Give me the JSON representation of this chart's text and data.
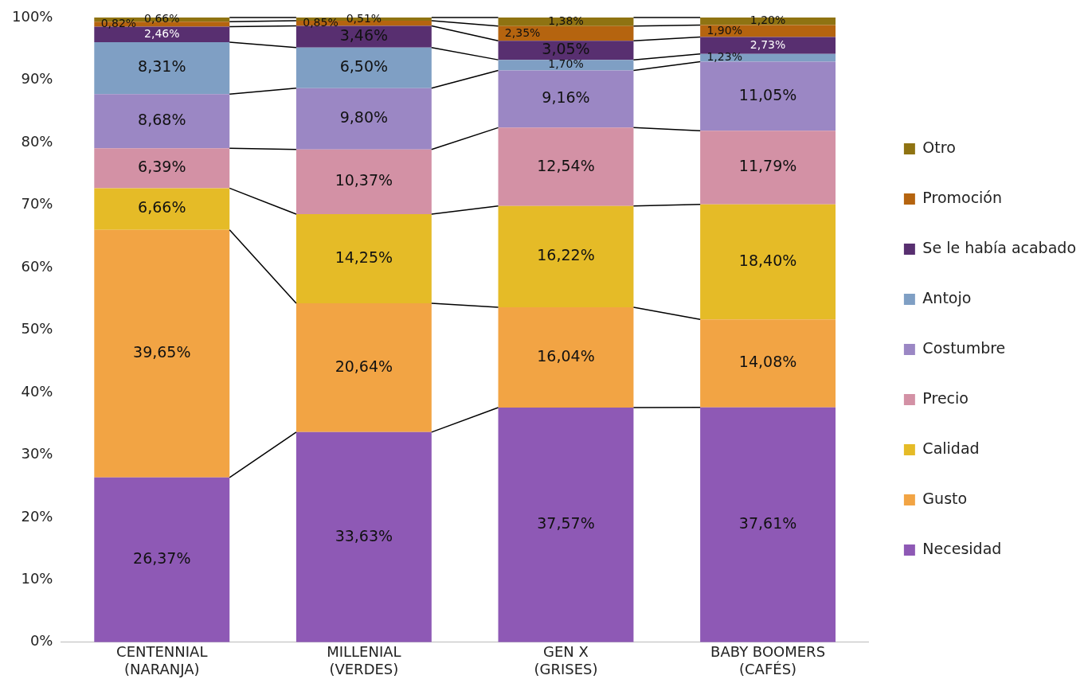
{
  "chart_data": {
    "type": "bar",
    "stacked": true,
    "categories": [
      "CENTENNIAL (NARANJA)",
      "MILLENIAL (VERDES)",
      "GEN X (GRISES)",
      "BABY BOOMERS (CAFÉS)"
    ],
    "ylim": [
      0,
      100
    ],
    "yticks": [
      {
        "value": 0,
        "label": "0%"
      },
      {
        "value": 10,
        "label": "10%"
      },
      {
        "value": 20,
        "label": "20%"
      },
      {
        "value": 30,
        "label": "30%"
      },
      {
        "value": 40,
        "label": "40%"
      },
      {
        "value": 50,
        "label": "50%"
      },
      {
        "value": 60,
        "label": "60%"
      },
      {
        "value": 70,
        "label": "70%"
      },
      {
        "value": 80,
        "label": "80%"
      },
      {
        "value": 90,
        "label": "90%"
      },
      {
        "value": 100,
        "label": "100%"
      }
    ],
    "grid": false,
    "legend": "right",
    "series": [
      {
        "name": "Necesidad",
        "color": "#8e59b5",
        "values": [
          26.37,
          33.63,
          37.57,
          37.61
        ],
        "value_labels": [
          "26,37%",
          "33,63%",
          "37,57%",
          "37,61%"
        ]
      },
      {
        "name": "Gusto",
        "color": "#f2a444",
        "values": [
          39.65,
          20.64,
          16.04,
          14.08
        ],
        "value_labels": [
          "39,65%",
          "20,64%",
          "16,04%",
          "14,08%"
        ]
      },
      {
        "name": "Calidad",
        "color": "#e5bb27",
        "values": [
          6.66,
          14.25,
          16.22,
          18.4
        ],
        "value_labels": [
          "6,66%",
          "14,25%",
          "16,22%",
          "18,40%"
        ]
      },
      {
        "name": "Precio",
        "color": "#d391a5",
        "values": [
          6.39,
          10.37,
          12.54,
          11.79
        ],
        "value_labels": [
          "6,39%",
          "10,37%",
          "12,54%",
          "11,79%"
        ]
      },
      {
        "name": "Costumbre",
        "color": "#9b87c4",
        "values": [
          8.68,
          9.8,
          9.16,
          11.05
        ],
        "value_labels": [
          "8,68%",
          "9,80%",
          "9,16%",
          "11,05%"
        ]
      },
      {
        "name": "Antojo",
        "color": "#7f9fc4",
        "values": [
          8.31,
          6.5,
          1.7,
          1.23
        ],
        "value_labels": [
          "8,31%",
          "6,50%",
          "1,70%",
          "1,23%"
        ]
      },
      {
        "name": "Se le había acabado",
        "color": "#582f70",
        "values": [
          2.46,
          3.46,
          3.05,
          2.73
        ],
        "value_labels": [
          "2,46%",
          "3,46%",
          "3,05%",
          "2,73%"
        ]
      },
      {
        "name": "Promoción",
        "color": "#b5640f",
        "values": [
          0.82,
          0.85,
          2.35,
          1.9
        ],
        "value_labels": [
          "0,82%",
          "0,85%",
          "2,35%",
          "1,90%"
        ]
      },
      {
        "name": "Otro",
        "color": "#8f7312",
        "values": [
          0.66,
          0.51,
          1.38,
          1.2
        ],
        "value_labels": [
          "0,66%",
          "0,51%",
          "1,38%",
          "1,20%"
        ]
      }
    ]
  }
}
